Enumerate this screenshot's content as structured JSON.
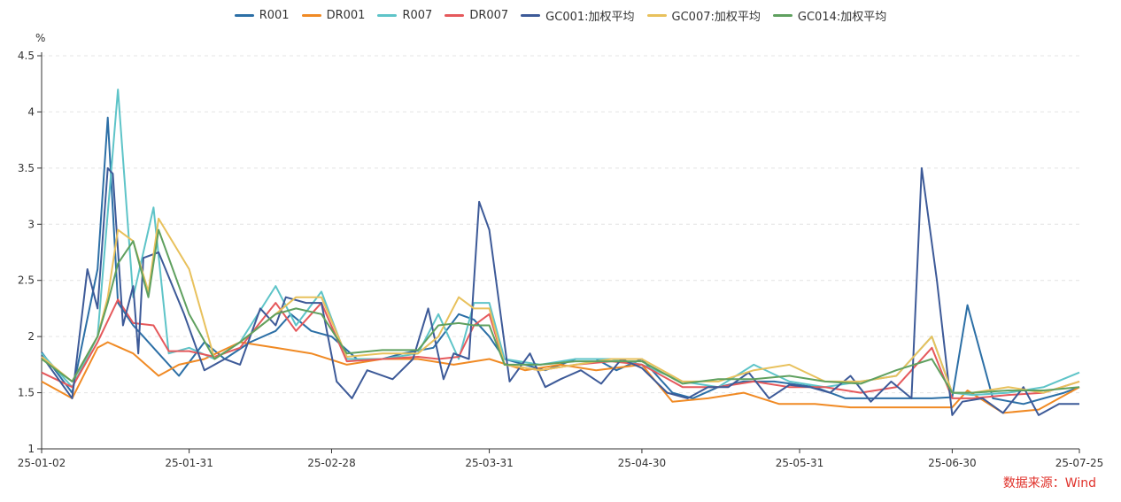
{
  "chart_data": {
    "type": "line",
    "ylabel": "%",
    "ylim": [
      1,
      4.5
    ],
    "yticks": [
      "1",
      "1.5",
      "2",
      "2.5",
      "3",
      "3.5",
      "4",
      "4.5"
    ],
    "xticks": [
      "25-01-02",
      "25-01-31",
      "25-02-28",
      "25-03-31",
      "25-04-30",
      "25-05-31",
      "25-06-30",
      "25-07-25"
    ],
    "x_range": [
      "2025-01-02",
      "2025-07-25"
    ],
    "grid": true,
    "legend": "top-center",
    "series": [
      {
        "name": "R001",
        "color": "#2c6fa6",
        "x": [
          "2025-01-02",
          "2025-01-08",
          "2025-01-13",
          "2025-01-15",
          "2025-01-17",
          "2025-01-20",
          "2025-01-22",
          "2025-01-25",
          "2025-01-29",
          "2025-02-03",
          "2025-02-07",
          "2025-02-12",
          "2025-02-17",
          "2025-02-20",
          "2025-02-24",
          "2025-02-28",
          "2025-03-05",
          "2025-03-10",
          "2025-03-14",
          "2025-03-20",
          "2025-03-25",
          "2025-03-28",
          "2025-03-31",
          "2025-04-03",
          "2025-04-07",
          "2025-04-11",
          "2025-04-17",
          "2025-04-21",
          "2025-04-25",
          "2025-04-30",
          "2025-05-06",
          "2025-05-10",
          "2025-05-15",
          "2025-05-20",
          "2025-05-26",
          "2025-06-03",
          "2025-06-09",
          "2025-06-13",
          "2025-06-18",
          "2025-06-23",
          "2025-06-26",
          "2025-06-30",
          "2025-07-03",
          "2025-07-08",
          "2025-07-14",
          "2025-07-18",
          "2025-07-22",
          "2025-07-25"
        ],
        "y": [
          1.86,
          1.5,
          2.6,
          3.95,
          2.3,
          2.1,
          2.0,
          1.85,
          1.65,
          1.95,
          1.8,
          1.95,
          2.05,
          2.2,
          2.05,
          2.0,
          1.8,
          1.8,
          1.85,
          1.9,
          2.2,
          2.15,
          2.0,
          1.8,
          1.75,
          1.7,
          1.8,
          1.8,
          1.7,
          1.8,
          1.5,
          1.45,
          1.55,
          1.6,
          1.6,
          1.55,
          1.45,
          1.45,
          1.45,
          1.45,
          1.45,
          1.46,
          2.28,
          1.45,
          1.4,
          1.45,
          1.5,
          1.55
        ]
      },
      {
        "name": "DR001",
        "color": "#f08a24",
        "x": [
          "2025-01-02",
          "2025-01-08",
          "2025-01-13",
          "2025-01-15",
          "2025-01-20",
          "2025-01-25",
          "2025-01-29",
          "2025-02-03",
          "2025-02-10",
          "2025-02-17",
          "2025-02-24",
          "2025-03-03",
          "2025-03-10",
          "2025-03-17",
          "2025-03-24",
          "2025-03-31",
          "2025-04-07",
          "2025-04-14",
          "2025-04-21",
          "2025-04-30",
          "2025-05-06",
          "2025-05-13",
          "2025-05-20",
          "2025-05-27",
          "2025-06-03",
          "2025-06-10",
          "2025-06-17",
          "2025-06-24",
          "2025-06-30",
          "2025-07-03",
          "2025-07-10",
          "2025-07-17",
          "2025-07-25"
        ],
        "y": [
          1.6,
          1.45,
          1.9,
          1.95,
          1.85,
          1.65,
          1.75,
          1.8,
          1.95,
          1.9,
          1.85,
          1.75,
          1.8,
          1.8,
          1.75,
          1.8,
          1.7,
          1.75,
          1.7,
          1.75,
          1.42,
          1.45,
          1.5,
          1.4,
          1.4,
          1.37,
          1.37,
          1.37,
          1.37,
          1.52,
          1.32,
          1.35,
          1.55
        ]
      },
      {
        "name": "R007",
        "color": "#5ec4c8",
        "x": [
          "2025-01-02",
          "2025-01-08",
          "2025-01-13",
          "2025-01-17",
          "2025-01-20",
          "2025-01-24",
          "2025-01-27",
          "2025-01-31",
          "2025-02-05",
          "2025-02-10",
          "2025-02-17",
          "2025-02-21",
          "2025-02-26",
          "2025-03-03",
          "2025-03-10",
          "2025-03-17",
          "2025-03-21",
          "2025-03-25",
          "2025-03-28",
          "2025-03-31",
          "2025-04-03",
          "2025-04-10",
          "2025-04-17",
          "2025-04-24",
          "2025-04-30",
          "2025-05-08",
          "2025-05-15",
          "2025-05-22",
          "2025-05-29",
          "2025-06-05",
          "2025-06-12",
          "2025-06-19",
          "2025-06-26",
          "2025-06-30",
          "2025-07-04",
          "2025-07-11",
          "2025-07-18",
          "2025-07-25"
        ],
        "y": [
          1.85,
          1.55,
          2.0,
          4.2,
          2.35,
          3.15,
          1.85,
          1.9,
          1.8,
          1.95,
          2.45,
          2.1,
          2.4,
          1.8,
          1.8,
          1.85,
          2.2,
          1.8,
          2.3,
          2.3,
          1.8,
          1.75,
          1.8,
          1.8,
          1.75,
          1.6,
          1.55,
          1.75,
          1.6,
          1.55,
          1.6,
          1.65,
          2.0,
          1.5,
          1.48,
          1.5,
          1.55,
          1.68
        ]
      },
      {
        "name": "DR007",
        "color": "#e5595c",
        "x": [
          "2025-01-02",
          "2025-01-08",
          "2025-01-13",
          "2025-01-17",
          "2025-01-20",
          "2025-01-24",
          "2025-01-27",
          "2025-01-31",
          "2025-02-05",
          "2025-02-10",
          "2025-02-17",
          "2025-02-21",
          "2025-02-26",
          "2025-03-03",
          "2025-03-10",
          "2025-03-17",
          "2025-03-21",
          "2025-03-25",
          "2025-03-28",
          "2025-03-31",
          "2025-04-03",
          "2025-04-10",
          "2025-04-17",
          "2025-04-24",
          "2025-04-30",
          "2025-05-08",
          "2025-05-15",
          "2025-05-22",
          "2025-05-29",
          "2025-06-05",
          "2025-06-12",
          "2025-06-19",
          "2025-06-26",
          "2025-06-30",
          "2025-07-04",
          "2025-07-11",
          "2025-07-18",
          "2025-07-25"
        ],
        "y": [
          1.68,
          1.55,
          1.95,
          2.33,
          2.12,
          2.1,
          1.87,
          1.87,
          1.82,
          1.9,
          2.3,
          2.05,
          2.3,
          1.78,
          1.8,
          1.82,
          1.8,
          1.82,
          2.1,
          2.2,
          1.75,
          1.7,
          1.75,
          1.78,
          1.75,
          1.55,
          1.55,
          1.6,
          1.55,
          1.55,
          1.5,
          1.55,
          1.9,
          1.45,
          1.45,
          1.48,
          1.5,
          1.6
        ]
      },
      {
        "name": "GC001:加权平均",
        "color": "#3d5a98",
        "x": [
          "2025-01-02",
          "2025-01-08",
          "2025-01-11",
          "2025-01-13",
          "2025-01-15",
          "2025-01-16",
          "2025-01-18",
          "2025-01-20",
          "2025-01-21",
          "2025-01-22",
          "2025-01-25",
          "2025-01-30",
          "2025-02-03",
          "2025-02-07",
          "2025-02-10",
          "2025-02-14",
          "2025-02-17",
          "2025-02-19",
          "2025-02-23",
          "2025-02-26",
          "2025-03-01",
          "2025-03-04",
          "2025-03-07",
          "2025-03-12",
          "2025-03-16",
          "2025-03-19",
          "2025-03-22",
          "2025-03-24",
          "2025-03-27",
          "2025-03-29",
          "2025-03-31",
          "2025-04-04",
          "2025-04-08",
          "2025-04-11",
          "2025-04-14",
          "2025-04-18",
          "2025-04-22",
          "2025-04-26",
          "2025-04-30",
          "2025-05-05",
          "2025-05-09",
          "2025-05-13",
          "2025-05-17",
          "2025-05-21",
          "2025-05-25",
          "2025-05-29",
          "2025-06-02",
          "2025-06-06",
          "2025-06-10",
          "2025-06-14",
          "2025-06-18",
          "2025-06-22",
          "2025-06-24",
          "2025-06-27",
          "2025-06-30",
          "2025-07-02",
          "2025-07-06",
          "2025-07-10",
          "2025-07-14",
          "2025-07-17",
          "2025-07-21",
          "2025-07-25"
        ],
        "y": [
          1.83,
          1.45,
          2.6,
          2.25,
          3.5,
          3.45,
          2.1,
          2.45,
          1.85,
          2.7,
          2.75,
          2.2,
          1.7,
          1.8,
          1.75,
          2.25,
          2.1,
          2.35,
          2.3,
          2.3,
          1.6,
          1.45,
          1.7,
          1.62,
          1.8,
          2.25,
          1.62,
          1.85,
          1.8,
          3.2,
          2.95,
          1.6,
          1.85,
          1.55,
          1.62,
          1.7,
          1.58,
          1.8,
          1.72,
          1.5,
          1.45,
          1.55,
          1.55,
          1.68,
          1.45,
          1.57,
          1.55,
          1.5,
          1.65,
          1.42,
          1.6,
          1.45,
          3.5,
          2.5,
          1.3,
          1.42,
          1.45,
          1.32,
          1.55,
          1.3,
          1.4,
          1.4
        ]
      },
      {
        "name": "GC007:加权平均",
        "color": "#e8c15c",
        "x": [
          "2025-01-02",
          "2025-01-08",
          "2025-01-13",
          "2025-01-15",
          "2025-01-17",
          "2025-01-20",
          "2025-01-23",
          "2025-01-25",
          "2025-01-31",
          "2025-02-05",
          "2025-02-10",
          "2025-02-17",
          "2025-02-21",
          "2025-02-26",
          "2025-03-03",
          "2025-03-10",
          "2025-03-17",
          "2025-03-21",
          "2025-03-25",
          "2025-03-28",
          "2025-03-31",
          "2025-04-03",
          "2025-04-10",
          "2025-04-17",
          "2025-04-24",
          "2025-04-30",
          "2025-05-08",
          "2025-05-15",
          "2025-05-22",
          "2025-05-29",
          "2025-06-05",
          "2025-06-12",
          "2025-06-19",
          "2025-06-26",
          "2025-06-30",
          "2025-07-04",
          "2025-07-11",
          "2025-07-18",
          "2025-07-25"
        ],
        "y": [
          1.82,
          1.6,
          2.0,
          2.35,
          2.95,
          2.85,
          2.4,
          3.05,
          2.6,
          1.8,
          1.95,
          2.2,
          2.35,
          2.35,
          1.82,
          1.85,
          1.85,
          2.0,
          2.35,
          2.25,
          2.25,
          1.75,
          1.7,
          1.75,
          1.8,
          1.8,
          1.6,
          1.6,
          1.7,
          1.75,
          1.6,
          1.6,
          1.65,
          2.0,
          1.5,
          1.5,
          1.55,
          1.5,
          1.6
        ]
      },
      {
        "name": "GC014:加权平均",
        "color": "#5fa05f",
        "x": [
          "2025-01-02",
          "2025-01-08",
          "2025-01-13",
          "2025-01-15",
          "2025-01-17",
          "2025-01-20",
          "2025-01-23",
          "2025-01-25",
          "2025-01-31",
          "2025-02-05",
          "2025-02-10",
          "2025-02-17",
          "2025-02-21",
          "2025-02-26",
          "2025-03-03",
          "2025-03-10",
          "2025-03-17",
          "2025-03-21",
          "2025-03-25",
          "2025-03-28",
          "2025-03-31",
          "2025-04-03",
          "2025-04-10",
          "2025-04-17",
          "2025-04-24",
          "2025-04-30",
          "2025-05-08",
          "2025-05-15",
          "2025-05-22",
          "2025-05-29",
          "2025-06-05",
          "2025-06-12",
          "2025-06-19",
          "2025-06-26",
          "2025-06-30",
          "2025-07-04",
          "2025-07-11",
          "2025-07-18",
          "2025-07-25"
        ],
        "y": [
          1.8,
          1.6,
          2.0,
          2.3,
          2.65,
          2.85,
          2.35,
          2.95,
          2.2,
          1.8,
          1.95,
          2.2,
          2.25,
          2.2,
          1.85,
          1.88,
          1.88,
          2.1,
          2.12,
          2.1,
          2.1,
          1.75,
          1.75,
          1.78,
          1.78,
          1.78,
          1.58,
          1.62,
          1.62,
          1.65,
          1.6,
          1.58,
          1.7,
          1.8,
          1.5,
          1.5,
          1.52,
          1.52,
          1.55
        ]
      }
    ]
  },
  "unit_label": "%",
  "source": "数据来源：Wind"
}
